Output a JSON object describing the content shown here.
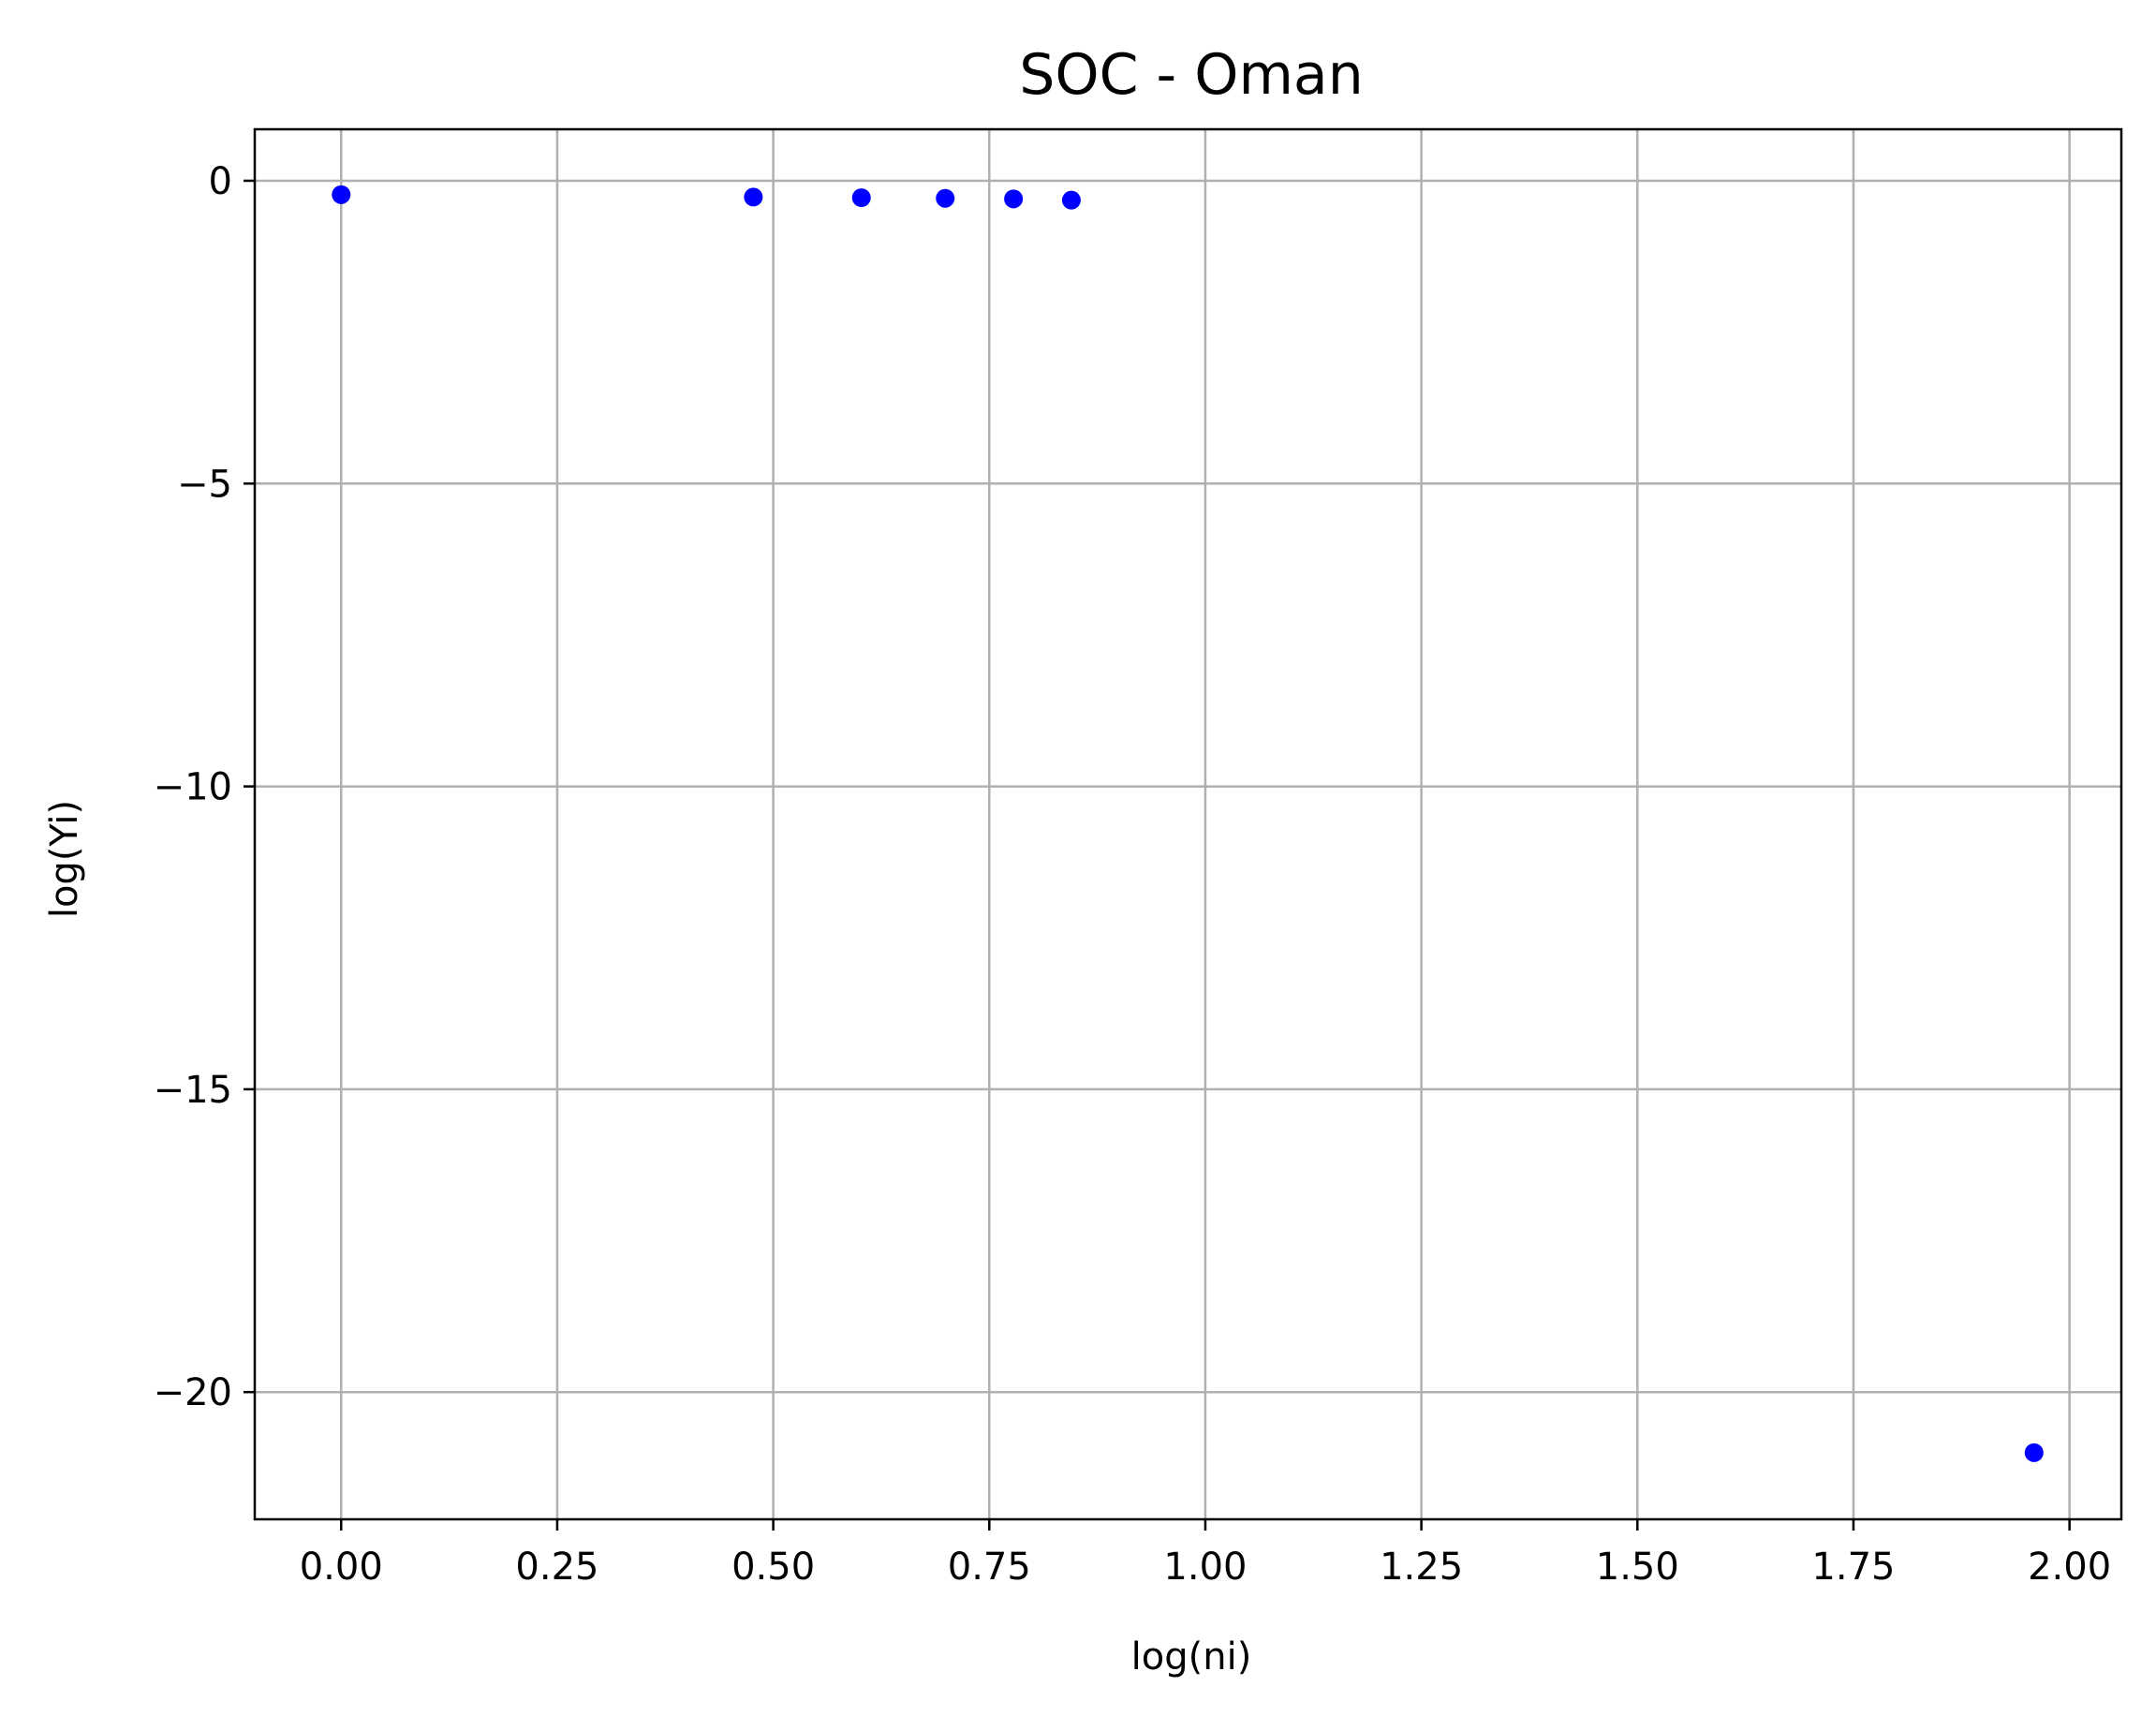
{
  "chart_data": {
    "type": "scatter",
    "title": "SOC - Oman",
    "xlabel": "log(ni)",
    "ylabel": "log(Yi)",
    "xlim": [
      -0.1,
      2.06
    ],
    "ylim": [
      -22.1,
      0.85
    ],
    "grid": true,
    "x_ticks": [
      0.0,
      0.25,
      0.5,
      0.75,
      1.0,
      1.25,
      1.5,
      1.75,
      2.0
    ],
    "x_tick_labels": [
      "0.00",
      "0.25",
      "0.50",
      "0.75",
      "1.00",
      "1.25",
      "1.50",
      "1.75",
      "2.00"
    ],
    "y_ticks": [
      0,
      -5,
      -10,
      -15,
      -20
    ],
    "y_tick_labels": [
      "0",
      "−5",
      "−10",
      "−15",
      "−20"
    ],
    "marker_color": "#0000ff",
    "series": [
      {
        "x": [
          0.0,
          0.477,
          0.602,
          0.699,
          0.778,
          0.845,
          1.959
        ],
        "y": [
          -0.23,
          -0.27,
          -0.28,
          -0.29,
          -0.3,
          -0.32,
          -21.0
        ]
      }
    ]
  }
}
